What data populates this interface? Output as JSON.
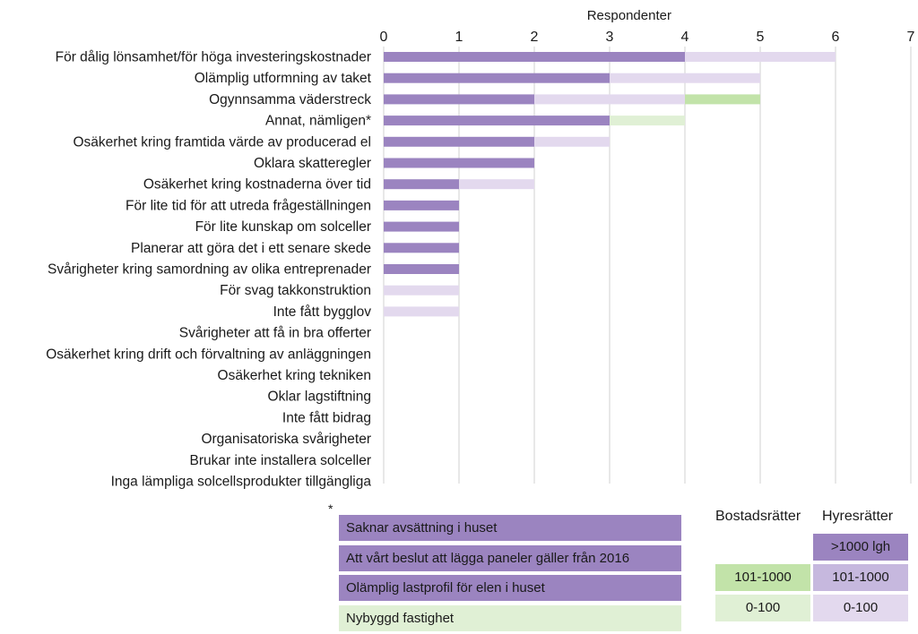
{
  "chart_data": {
    "type": "bar",
    "orientation": "horizontal",
    "stacked": true,
    "xlabel": "Respondenter",
    "xlim": [
      0,
      7
    ],
    "xticks": [
      0,
      1,
      2,
      3,
      4,
      5,
      6,
      7
    ],
    "grid": true,
    "categories": [
      "För dålig lönsamhet/för höga investeringskostnader",
      "Olämplig utformning av taket",
      "Ogynnsamma väderstreck",
      "Annat, nämligen*",
      "Osäkerhet kring framtida värde av producerad el",
      "Oklara skatteregler",
      "Osäkerhet kring kostnaderna över tid",
      "För lite tid för att utreda frågeställningen",
      "För lite kunskap om solceller",
      "Planerar att göra det i ett senare skede",
      "Svårigheter kring samordning av olika entreprenader",
      "För svag takkonstruktion",
      "Inte fått bygglov",
      "Svårigheter att få in bra offerter",
      "Osäkerhet kring drift och förvaltning av anläggningen",
      "Osäkerhet kring tekniken",
      "Oklar lagstiftning",
      "Inte fått bidrag",
      "Organisatoriska svårigheter",
      "Brukar inte installera solceller",
      "Inga lämpliga solcellsprodukter tillgängliga"
    ],
    "series": [
      {
        "name": "Hyresrätter >1000 lgh",
        "color": "#9b84c0",
        "values": [
          4,
          3,
          2,
          3,
          2,
          2,
          1,
          1,
          1,
          1,
          1,
          0,
          0,
          0,
          0,
          0,
          0,
          0,
          0,
          0,
          0
        ]
      },
      {
        "name": "Hyresrätter 101-1000",
        "color": "#c6b8de",
        "values": [
          0,
          0,
          0,
          0,
          0,
          0,
          0,
          0,
          0,
          0,
          0,
          0,
          0,
          0,
          0,
          0,
          0,
          0,
          0,
          0,
          0
        ]
      },
      {
        "name": "Hyresrätter 0-100",
        "color": "#e3d9ee",
        "values": [
          2,
          2,
          2,
          0,
          1,
          0,
          1,
          0,
          0,
          0,
          0,
          1,
          1,
          0,
          0,
          0,
          0,
          0,
          0,
          0,
          0
        ]
      },
      {
        "name": "Bostadsrätter 101-1000",
        "color": "#c2e3a9",
        "values": [
          0,
          0,
          1,
          0,
          0,
          0,
          0,
          0,
          0,
          0,
          0,
          0,
          0,
          0,
          0,
          0,
          0,
          0,
          0,
          0,
          0
        ]
      },
      {
        "name": "Bostadsrätter 0-100",
        "color": "#e0f0d5",
        "values": [
          0,
          0,
          0,
          1,
          0,
          0,
          0,
          0,
          0,
          0,
          0,
          0,
          0,
          0,
          0,
          0,
          0,
          0,
          0,
          0,
          0
        ]
      }
    ]
  },
  "footnote": {
    "marker": "*",
    "items": [
      {
        "text": "Saknar avsättning i huset",
        "color": "#9b84c0"
      },
      {
        "text": "Att vårt beslut att lägga paneler gäller från 2016",
        "color": "#9b84c0"
      },
      {
        "text": "Olämplig lastprofil för elen  i huset",
        "color": "#9b84c0"
      },
      {
        "text": "Nybyggd fastighet",
        "color": "#e0f0d5"
      }
    ]
  },
  "legend": {
    "headers": {
      "bostad": "Bostadsrätter",
      "hyres": "Hyresrätter"
    },
    "hyres_large": {
      "label": ">1000 lgh",
      "color": "#9b84c0"
    },
    "hyres_mid": {
      "label": "101-1000",
      "color": "#c6b8de"
    },
    "hyres_small": {
      "label": "0-100",
      "color": "#e3d9ee"
    },
    "bostad_mid": {
      "label": "101-1000",
      "color": "#c2e3a9"
    },
    "bostad_small": {
      "label": "0-100",
      "color": "#e0f0d5"
    }
  }
}
